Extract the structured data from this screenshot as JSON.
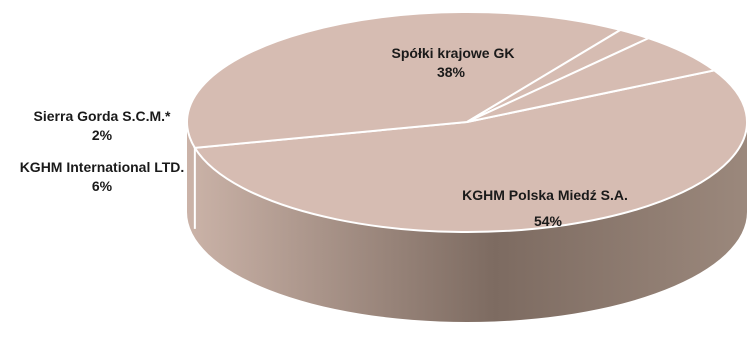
{
  "chart_data": {
    "type": "pie",
    "style": "3d",
    "slices": [
      {
        "label": "KGHM Polska Miedź S.A.",
        "value": 54,
        "pct": "54%"
      },
      {
        "label": "Spółki krajowe GK",
        "value": 38,
        "pct": "38%"
      },
      {
        "label": "Sierra Gorda S.C.M.*",
        "value": 2,
        "pct": "2%"
      },
      {
        "label": "KGHM International LTD.",
        "value": 6,
        "pct": "6%"
      }
    ],
    "colors": {
      "top": "#d6bcb2",
      "side": "#8a776c",
      "edge": "#ffffff"
    }
  }
}
